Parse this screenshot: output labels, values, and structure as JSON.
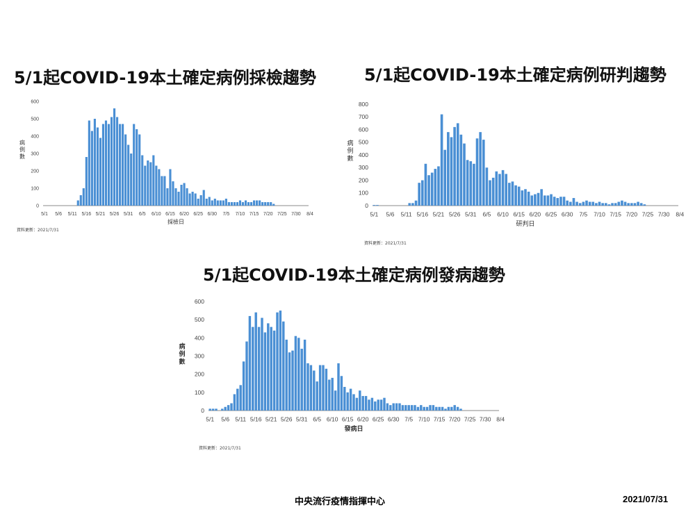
{
  "footer": {
    "org": "中央流行疫情指揮中心",
    "date": "2021/07/31"
  },
  "chart_data": [
    {
      "type": "bar",
      "title": "5/1起COVID-19本土確定病例採檢趨勢",
      "xlabel": "採檢日",
      "ylabel": "病例數",
      "ylim": [
        0,
        600
      ],
      "yticks": [
        0,
        100,
        200,
        300,
        400,
        500,
        600
      ],
      "xticks": [
        "5/1",
        "5/6",
        "5/11",
        "5/16",
        "5/21",
        "5/26",
        "5/31",
        "6/5",
        "6/10",
        "6/15",
        "6/20",
        "6/25",
        "6/30",
        "7/5",
        "7/10",
        "7/15",
        "7/20",
        "7/25",
        "7/30",
        "8/4"
      ],
      "update_note": "資料更新：2021/7/31",
      "x_start": "5/1",
      "values": [
        0,
        0,
        0,
        0,
        0,
        0,
        0,
        0,
        0,
        0,
        0,
        0,
        30,
        60,
        100,
        280,
        490,
        430,
        500,
        450,
        390,
        470,
        490,
        470,
        510,
        560,
        510,
        470,
        470,
        410,
        350,
        300,
        470,
        440,
        410,
        290,
        230,
        260,
        250,
        290,
        230,
        210,
        170,
        170,
        100,
        210,
        140,
        100,
        80,
        120,
        130,
        100,
        70,
        80,
        70,
        40,
        60,
        90,
        40,
        50,
        30,
        40,
        30,
        30,
        30,
        40,
        20,
        20,
        20,
        20,
        30,
        20,
        30,
        20,
        20,
        30,
        30,
        30,
        20,
        20,
        20,
        20,
        10
      ],
      "layout": {
        "svg": [
          24,
          138,
          420,
          190
        ],
        "plot": [
          38,
          8,
          382,
          156
        ]
      }
    },
    {
      "type": "bar",
      "title": "5/1起COVID-19本土確定病例研判趨勢",
      "xlabel": "研判日",
      "ylabel": "病例數",
      "ylim": [
        0,
        800
      ],
      "yticks": [
        0,
        100,
        200,
        300,
        400,
        500,
        600,
        700,
        800
      ],
      "xticks": [
        "5/1",
        "5/6",
        "5/11",
        "5/16",
        "5/21",
        "5/26",
        "5/31",
        "6/5",
        "6/10",
        "6/15",
        "6/20",
        "6/25",
        "6/30",
        "7/5",
        "7/10",
        "7/15",
        "7/20",
        "7/25",
        "7/30",
        "8/4"
      ],
      "update_note": "資料更新：2021/7/31",
      "x_start": "5/1",
      "values": [
        5,
        5,
        0,
        0,
        0,
        0,
        0,
        0,
        0,
        0,
        0,
        20,
        20,
        40,
        180,
        200,
        330,
        240,
        260,
        290,
        310,
        720,
        440,
        580,
        540,
        620,
        650,
        560,
        490,
        360,
        350,
        330,
        530,
        580,
        520,
        300,
        200,
        220,
        270,
        250,
        280,
        250,
        180,
        190,
        160,
        150,
        120,
        130,
        110,
        80,
        90,
        100,
        130,
        80,
        80,
        90,
        70,
        60,
        70,
        70,
        40,
        30,
        60,
        30,
        20,
        30,
        40,
        30,
        30,
        20,
        30,
        20,
        20,
        10,
        20,
        20,
        30,
        40,
        30,
        20,
        20,
        20,
        30,
        20,
        10
      ],
      "layout": {
        "svg": [
          494,
          142,
          490,
          210
        ],
        "plot": [
          42,
          8,
          440,
          156
        ]
      }
    },
    {
      "type": "bar",
      "title": "5/1起COVID-19本土確定病例發病趨勢",
      "xlabel": "發病日",
      "ylabel": "病例數",
      "ylim": [
        0,
        600
      ],
      "yticks": [
        0,
        100,
        200,
        300,
        400,
        500,
        600
      ],
      "xticks": [
        "5/1",
        "5/6",
        "5/11",
        "5/16",
        "5/21",
        "5/26",
        "5/31",
        "6/5",
        "6/10",
        "6/15",
        "6/20",
        "6/25",
        "6/30",
        "7/5",
        "7/10",
        "7/15",
        "7/20",
        "7/25",
        "7/30",
        "8/4"
      ],
      "update_note": "資料更新：2021/7/31",
      "x_start": "5/1",
      "values": [
        10,
        10,
        10,
        0,
        10,
        20,
        30,
        40,
        90,
        120,
        140,
        270,
        380,
        520,
        460,
        540,
        460,
        510,
        430,
        480,
        460,
        440,
        540,
        550,
        490,
        390,
        320,
        330,
        410,
        400,
        340,
        390,
        260,
        250,
        220,
        160,
        250,
        250,
        230,
        170,
        180,
        110,
        260,
        190,
        130,
        100,
        120,
        90,
        70,
        110,
        80,
        80,
        60,
        70,
        50,
        60,
        60,
        70,
        40,
        30,
        40,
        40,
        40,
        30,
        30,
        30,
        30,
        30,
        20,
        30,
        20,
        20,
        30,
        30,
        20,
        20,
        20,
        10,
        20,
        20,
        30,
        20,
        10
      ],
      "layout": {
        "svg": [
          252,
          428,
          480,
          232
        ],
        "plot": [
          48,
          6,
          418,
          157
        ]
      }
    }
  ]
}
